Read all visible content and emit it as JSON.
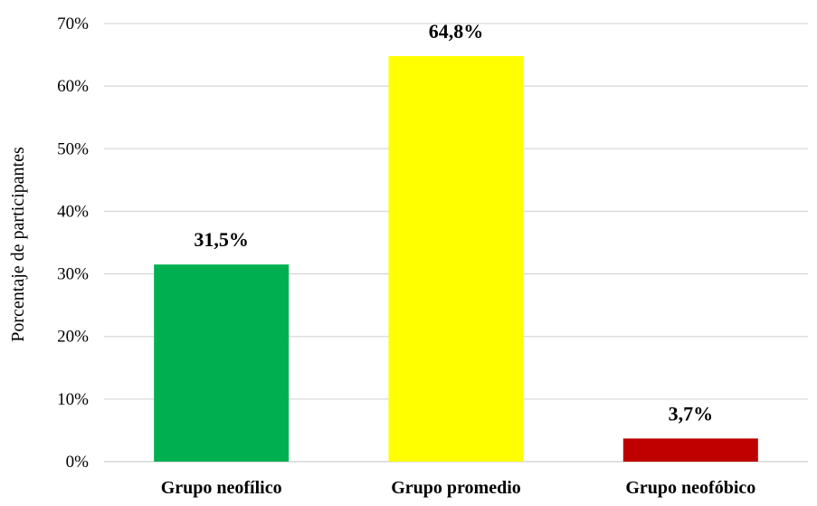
{
  "chart_data": {
    "type": "bar",
    "categories": [
      "Grupo neofílico",
      "Grupo promedio",
      "Grupo neofóbico"
    ],
    "values": [
      31.5,
      64.8,
      3.7
    ],
    "data_labels": [
      "31,5%",
      "64,8%",
      "3,7%"
    ],
    "colors": [
      "#00b050",
      "#ffff00",
      "#c00000"
    ],
    "title": "",
    "xlabel": "",
    "ylabel": "Porcentaje de participantes",
    "ylim": [
      0,
      70
    ],
    "yticks": [
      0,
      10,
      20,
      30,
      40,
      50,
      60,
      70
    ],
    "ytick_labels": [
      "0%",
      "10%",
      "20%",
      "30%",
      "40%",
      "50%",
      "60%",
      "70%"
    ],
    "grid": true,
    "legend": "none"
  }
}
